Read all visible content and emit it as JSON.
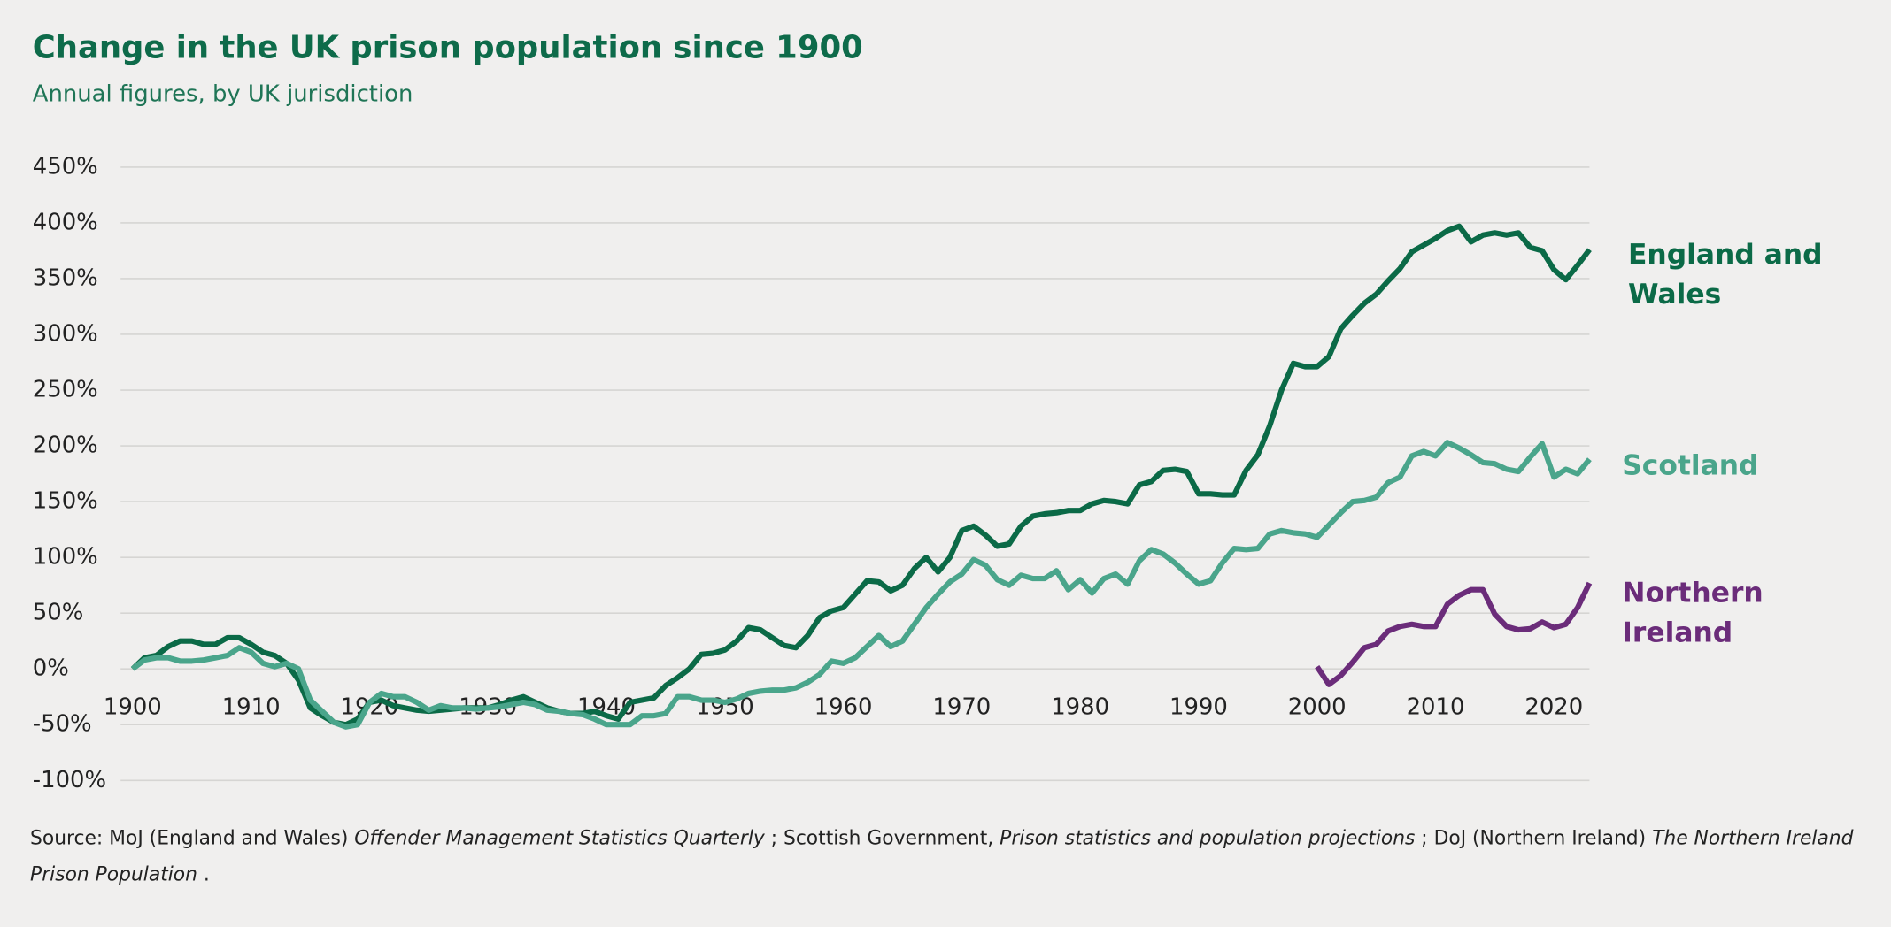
{
  "chart_data": {
    "type": "line",
    "title": "Change in the UK prison population since 1900",
    "subtitle": "Annual figures, by UK jurisdiction",
    "source": [
      {
        "text": "Source: MoJ (England and Wales) ",
        "italic": false
      },
      {
        "text": "Offender Management Statistics Quarterly",
        "italic": true
      },
      {
        "text": " ; Scottish Government, ",
        "italic": false
      },
      {
        "text": "Prison statistics and population projections",
        "italic": true
      },
      {
        "text": " ; DoJ (Northern Ireland) ",
        "italic": false
      },
      {
        "text": "The Northern Ireland Prison Population",
        "italic": true
      },
      {
        "text": " .",
        "italic": false
      }
    ],
    "x": [
      1900,
      1901,
      1902,
      1903,
      1904,
      1905,
      1906,
      1907,
      1908,
      1909,
      1910,
      1911,
      1912,
      1913,
      1914,
      1915,
      1916,
      1917,
      1918,
      1919,
      1920,
      1921,
      1922,
      1923,
      1924,
      1925,
      1926,
      1927,
      1928,
      1929,
      1930,
      1931,
      1932,
      1933,
      1934,
      1935,
      1936,
      1937,
      1938,
      1939,
      1940,
      1941,
      1942,
      1943,
      1944,
      1945,
      1946,
      1947,
      1948,
      1949,
      1950,
      1951,
      1952,
      1953,
      1954,
      1955,
      1956,
      1957,
      1958,
      1959,
      1960,
      1961,
      1962,
      1963,
      1964,
      1965,
      1966,
      1967,
      1968,
      1969,
      1970,
      1971,
      1972,
      1973,
      1974,
      1975,
      1976,
      1977,
      1978,
      1979,
      1980,
      1981,
      1982,
      1983,
      1984,
      1985,
      1986,
      1987,
      1988,
      1989,
      1990,
      1991,
      1992,
      1993,
      1994,
      1995,
      1996,
      1997,
      1998,
      1999,
      2000,
      2001,
      2002,
      2003,
      2004,
      2005,
      2006,
      2007,
      2008,
      2009,
      2010,
      2011,
      2012,
      2013,
      2014,
      2015,
      2016,
      2017,
      2018,
      2019,
      2020,
      2021,
      2022,
      2023
    ],
    "series": [
      {
        "name": "England and Wales",
        "color": "#0b6a47",
        "values": [
          0,
          10,
          12,
          20,
          25,
          25,
          22,
          22,
          28,
          28,
          22,
          15,
          12,
          5,
          -10,
          -35,
          -42,
          -48,
          -50,
          -45,
          -30,
          -28,
          -33,
          -35,
          -37,
          -38,
          -37,
          -36,
          -35,
          -35,
          -35,
          -32,
          -28,
          -25,
          -30,
          -35,
          -38,
          -40,
          -40,
          -38,
          -42,
          -45,
          -30,
          -28,
          -26,
          -15,
          -8,
          0,
          13,
          14,
          17,
          25,
          37,
          35,
          28,
          21,
          19,
          30,
          46,
          52,
          55,
          67,
          79,
          78,
          70,
          75,
          90,
          100,
          87,
          100,
          124,
          128,
          120,
          110,
          112,
          128,
          137,
          139,
          140,
          142,
          142,
          148,
          151,
          150,
          148,
          165,
          168,
          178,
          179,
          177,
          157,
          157,
          156,
          156,
          178,
          192,
          218,
          250,
          274,
          271,
          271,
          280,
          305,
          317,
          328,
          336,
          348,
          359,
          374,
          380,
          386,
          393,
          397,
          383,
          389,
          391,
          389,
          391,
          378,
          375,
          358,
          349,
          362,
          376
        ]
      },
      {
        "name": "Scotland",
        "color": "#4aa58b",
        "values": [
          0,
          8,
          10,
          10,
          7,
          7,
          8,
          10,
          12,
          19,
          15,
          5,
          2,
          5,
          0,
          -28,
          -38,
          -48,
          -52,
          -50,
          -30,
          -22,
          -25,
          -25,
          -30,
          -37,
          -33,
          -35,
          -35,
          -36,
          -35,
          -34,
          -32,
          -30,
          -32,
          -37,
          -38,
          -40,
          -41,
          -45,
          -50,
          -50,
          -50,
          -42,
          -42,
          -40,
          -25,
          -25,
          -28,
          -28,
          -30,
          -27,
          -22,
          -20,
          -19,
          -19,
          -17,
          -12,
          -5,
          7,
          5,
          10,
          20,
          30,
          20,
          25,
          40,
          55,
          67,
          78,
          85,
          98,
          93,
          80,
          75,
          84,
          81,
          81,
          88,
          71,
          80,
          68,
          81,
          85,
          76,
          97,
          107,
          103,
          95,
          85,
          76,
          79,
          95,
          108,
          107,
          108,
          121,
          124,
          122,
          121,
          118,
          129,
          140,
          150,
          151,
          154,
          167,
          172,
          191,
          195,
          191,
          203,
          198,
          192,
          185,
          184,
          179,
          177,
          190,
          202,
          172,
          179,
          175,
          188
        ]
      },
      {
        "name": "Northern Ireland",
        "color": "#6b2c7a",
        "values": [
          null,
          null,
          null,
          null,
          null,
          null,
          null,
          null,
          null,
          null,
          null,
          null,
          null,
          null,
          null,
          null,
          null,
          null,
          null,
          null,
          null,
          null,
          null,
          null,
          null,
          null,
          null,
          null,
          null,
          null,
          null,
          null,
          null,
          null,
          null,
          null,
          null,
          null,
          null,
          null,
          null,
          null,
          null,
          null,
          null,
          null,
          null,
          null,
          null,
          null,
          null,
          null,
          null,
          null,
          null,
          null,
          null,
          null,
          null,
          null,
          null,
          null,
          null,
          null,
          null,
          null,
          null,
          null,
          null,
          null,
          null,
          null,
          null,
          null,
          null,
          null,
          null,
          null,
          null,
          null,
          null,
          null,
          null,
          null,
          null,
          null,
          null,
          null,
          null,
          null,
          null,
          null,
          null,
          null,
          null,
          null,
          null,
          null,
          null,
          null,
          2,
          -14,
          -6,
          6,
          19,
          22,
          34,
          38,
          40,
          38,
          38,
          58,
          66,
          71,
          71,
          49,
          38,
          35,
          36,
          42,
          37,
          40,
          55,
          77
        ]
      }
    ],
    "xlim": [
      1900,
      2023
    ],
    "xticks": [
      1900,
      1910,
      1920,
      1930,
      1940,
      1950,
      1960,
      1970,
      1980,
      1990,
      2000,
      2010,
      2020
    ],
    "ylim": [
      -100,
      450
    ],
    "yticks": [
      {
        "value": -100,
        "label": "-100%"
      },
      {
        "value": -50,
        "label": "-50%"
      },
      {
        "value": 0,
        "label": "0%"
      },
      {
        "value": 50,
        "label": "50%"
      },
      {
        "value": 100,
        "label": "100%"
      },
      {
        "value": 150,
        "label": "150%"
      },
      {
        "value": 200,
        "label": "200%"
      },
      {
        "value": 250,
        "label": "250%"
      },
      {
        "value": 300,
        "label": "300%"
      },
      {
        "value": 350,
        "label": "350%"
      },
      {
        "value": 400,
        "label": "400%"
      },
      {
        "value": 450,
        "label": "450%"
      }
    ],
    "grid": true
  }
}
